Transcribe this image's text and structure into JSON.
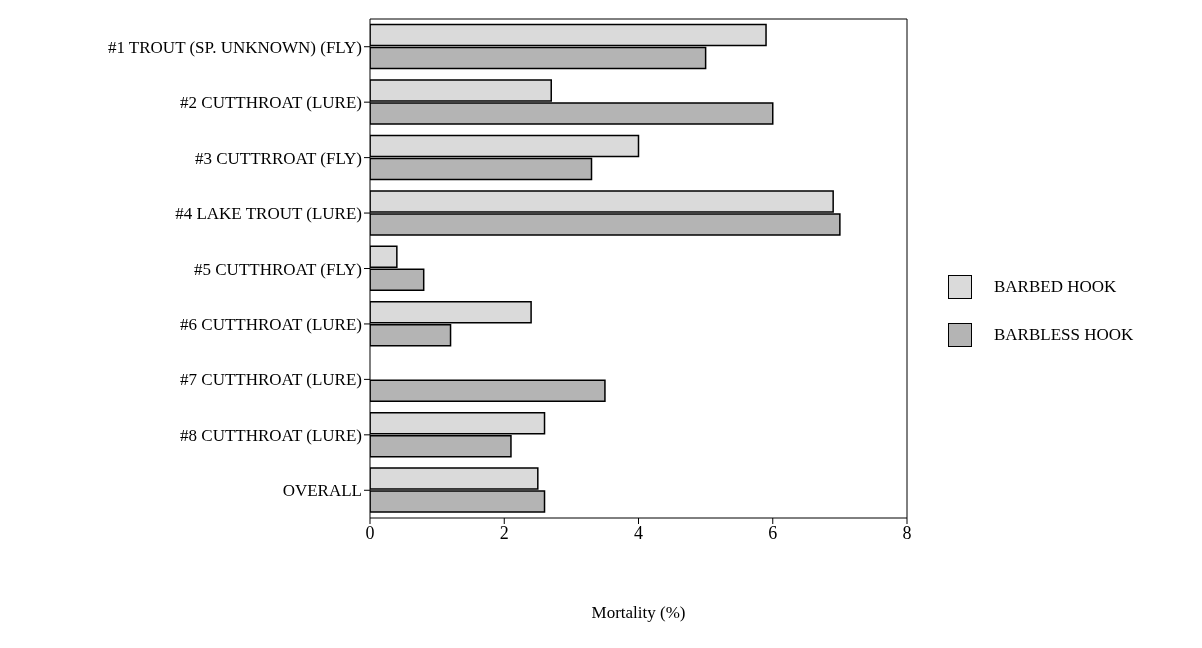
{
  "chart_data": {
    "type": "bar",
    "orientation": "horizontal",
    "xlabel": "Mortality (%)",
    "categories": [
      "#1 TROUT (SP. UNKNOWN) (FLY)",
      "#2 CUTTHROAT (LURE)",
      "#3 CUTTRROAT (FLY)",
      "#4 LAKE TROUT (LURE)",
      "#5 CUTTHROAT (FLY)",
      "#6 CUTTHROAT (LURE)",
      "#7 CUTTHROAT (LURE)",
      "#8 CUTTHROAT (LURE)",
      "OVERALL"
    ],
    "series": [
      {
        "name": "BARBED HOOK",
        "color": "#dadada",
        "values": [
          5.9,
          2.7,
          4.0,
          6.9,
          0.4,
          2.4,
          0,
          2.6,
          2.5
        ]
      },
      {
        "name": "BARBLESS HOOK",
        "color": "#b4b4b4",
        "values": [
          5.0,
          6.0,
          3.3,
          7.0,
          0.8,
          1.2,
          3.5,
          2.1,
          2.6
        ]
      }
    ],
    "xlim": [
      0,
      8
    ],
    "xticks": [
      0,
      2,
      4,
      6,
      8
    ],
    "grid": false,
    "legend": "right"
  }
}
